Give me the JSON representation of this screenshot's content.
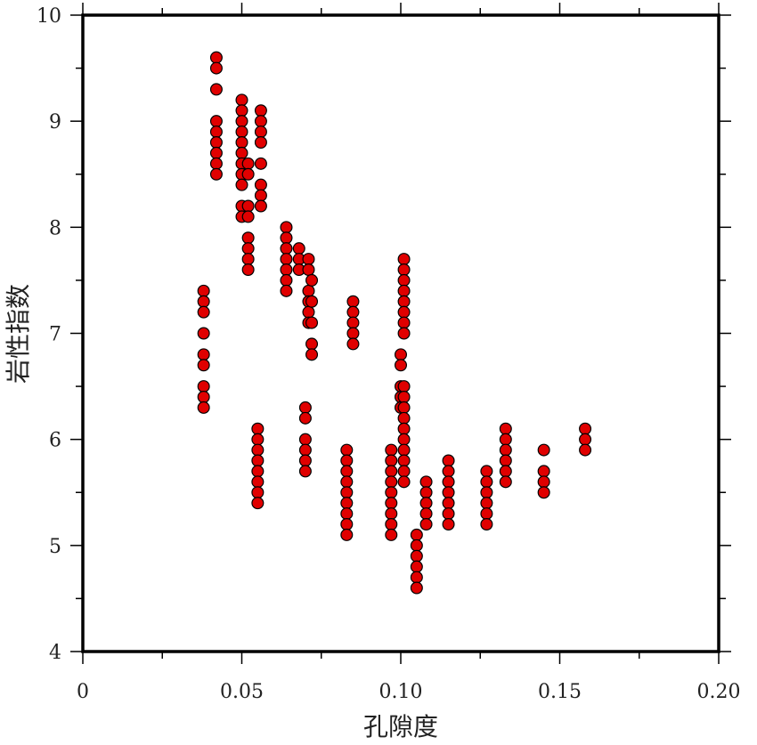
{
  "chart_data": {
    "type": "scatter",
    "title": "",
    "xlabel": "孔隙度",
    "ylabel": "岩性指数",
    "xlim": [
      0,
      0.2
    ],
    "ylim": [
      4,
      10
    ],
    "x_ticks": [
      "0",
      "0.05",
      "0.10",
      "0.15",
      "0.20"
    ],
    "x_tick_values": [
      0,
      0.05,
      0.1,
      0.15,
      0.2
    ],
    "y_ticks": [
      "4",
      "5",
      "6",
      "7",
      "8",
      "9",
      "10"
    ],
    "y_tick_values": [
      4,
      5,
      6,
      7,
      8,
      9,
      10
    ],
    "grid": false,
    "legend": "none",
    "point_color": "#e00000",
    "points": [
      {
        "x": 0.038,
        "y": 7.4
      },
      {
        "x": 0.038,
        "y": 7.3
      },
      {
        "x": 0.038,
        "y": 7.2
      },
      {
        "x": 0.038,
        "y": 7.0
      },
      {
        "x": 0.038,
        "y": 6.8
      },
      {
        "x": 0.038,
        "y": 6.7
      },
      {
        "x": 0.038,
        "y": 6.5
      },
      {
        "x": 0.038,
        "y": 6.4
      },
      {
        "x": 0.038,
        "y": 6.3
      },
      {
        "x": 0.042,
        "y": 9.6
      },
      {
        "x": 0.042,
        "y": 9.5
      },
      {
        "x": 0.042,
        "y": 9.3
      },
      {
        "x": 0.042,
        "y": 9.0
      },
      {
        "x": 0.042,
        "y": 8.9
      },
      {
        "x": 0.042,
        "y": 8.8
      },
      {
        "x": 0.042,
        "y": 8.7
      },
      {
        "x": 0.042,
        "y": 8.6
      },
      {
        "x": 0.042,
        "y": 8.5
      },
      {
        "x": 0.05,
        "y": 9.2
      },
      {
        "x": 0.05,
        "y": 9.1
      },
      {
        "x": 0.05,
        "y": 9.0
      },
      {
        "x": 0.05,
        "y": 8.9
      },
      {
        "x": 0.05,
        "y": 8.8
      },
      {
        "x": 0.05,
        "y": 8.7
      },
      {
        "x": 0.05,
        "y": 8.6
      },
      {
        "x": 0.05,
        "y": 8.5
      },
      {
        "x": 0.05,
        "y": 8.4
      },
      {
        "x": 0.05,
        "y": 8.2
      },
      {
        "x": 0.05,
        "y": 8.1
      },
      {
        "x": 0.052,
        "y": 8.6
      },
      {
        "x": 0.052,
        "y": 8.5
      },
      {
        "x": 0.052,
        "y": 8.2
      },
      {
        "x": 0.052,
        "y": 8.1
      },
      {
        "x": 0.052,
        "y": 7.9
      },
      {
        "x": 0.052,
        "y": 7.8
      },
      {
        "x": 0.052,
        "y": 7.7
      },
      {
        "x": 0.052,
        "y": 7.6
      },
      {
        "x": 0.056,
        "y": 9.1
      },
      {
        "x": 0.056,
        "y": 9.0
      },
      {
        "x": 0.056,
        "y": 8.9
      },
      {
        "x": 0.056,
        "y": 8.8
      },
      {
        "x": 0.056,
        "y": 8.6
      },
      {
        "x": 0.056,
        "y": 8.4
      },
      {
        "x": 0.056,
        "y": 8.3
      },
      {
        "x": 0.056,
        "y": 8.2
      },
      {
        "x": 0.055,
        "y": 6.1
      },
      {
        "x": 0.055,
        "y": 6.0
      },
      {
        "x": 0.055,
        "y": 5.9
      },
      {
        "x": 0.055,
        "y": 5.8
      },
      {
        "x": 0.055,
        "y": 5.7
      },
      {
        "x": 0.055,
        "y": 5.6
      },
      {
        "x": 0.055,
        "y": 5.5
      },
      {
        "x": 0.055,
        "y": 5.4
      },
      {
        "x": 0.064,
        "y": 8.0
      },
      {
        "x": 0.064,
        "y": 7.9
      },
      {
        "x": 0.064,
        "y": 7.8
      },
      {
        "x": 0.064,
        "y": 7.7
      },
      {
        "x": 0.064,
        "y": 7.6
      },
      {
        "x": 0.064,
        "y": 7.5
      },
      {
        "x": 0.064,
        "y": 7.4
      },
      {
        "x": 0.068,
        "y": 7.8
      },
      {
        "x": 0.068,
        "y": 7.7
      },
      {
        "x": 0.068,
        "y": 7.6
      },
      {
        "x": 0.071,
        "y": 7.7
      },
      {
        "x": 0.071,
        "y": 7.6
      },
      {
        "x": 0.071,
        "y": 7.4
      },
      {
        "x": 0.071,
        "y": 7.3
      },
      {
        "x": 0.071,
        "y": 7.2
      },
      {
        "x": 0.071,
        "y": 7.1
      },
      {
        "x": 0.072,
        "y": 7.5
      },
      {
        "x": 0.072,
        "y": 7.3
      },
      {
        "x": 0.072,
        "y": 7.1
      },
      {
        "x": 0.072,
        "y": 6.9
      },
      {
        "x": 0.072,
        "y": 6.8
      },
      {
        "x": 0.07,
        "y": 6.3
      },
      {
        "x": 0.07,
        "y": 6.2
      },
      {
        "x": 0.07,
        "y": 6.0
      },
      {
        "x": 0.07,
        "y": 5.9
      },
      {
        "x": 0.07,
        "y": 5.8
      },
      {
        "x": 0.07,
        "y": 5.7
      },
      {
        "x": 0.083,
        "y": 5.9
      },
      {
        "x": 0.083,
        "y": 5.8
      },
      {
        "x": 0.083,
        "y": 5.7
      },
      {
        "x": 0.083,
        "y": 5.6
      },
      {
        "x": 0.083,
        "y": 5.5
      },
      {
        "x": 0.083,
        "y": 5.4
      },
      {
        "x": 0.083,
        "y": 5.3
      },
      {
        "x": 0.083,
        "y": 5.2
      },
      {
        "x": 0.083,
        "y": 5.1
      },
      {
        "x": 0.085,
        "y": 7.3
      },
      {
        "x": 0.085,
        "y": 7.2
      },
      {
        "x": 0.085,
        "y": 7.1
      },
      {
        "x": 0.085,
        "y": 7.0
      },
      {
        "x": 0.085,
        "y": 6.9
      },
      {
        "x": 0.097,
        "y": 5.9
      },
      {
        "x": 0.097,
        "y": 5.8
      },
      {
        "x": 0.097,
        "y": 5.7
      },
      {
        "x": 0.097,
        "y": 5.6
      },
      {
        "x": 0.097,
        "y": 5.5
      },
      {
        "x": 0.097,
        "y": 5.4
      },
      {
        "x": 0.097,
        "y": 5.3
      },
      {
        "x": 0.097,
        "y": 5.2
      },
      {
        "x": 0.097,
        "y": 5.1
      },
      {
        "x": 0.1,
        "y": 6.8
      },
      {
        "x": 0.1,
        "y": 6.7
      },
      {
        "x": 0.1,
        "y": 6.5
      },
      {
        "x": 0.1,
        "y": 6.4
      },
      {
        "x": 0.1,
        "y": 6.3
      },
      {
        "x": 0.101,
        "y": 7.7
      },
      {
        "x": 0.101,
        "y": 7.6
      },
      {
        "x": 0.101,
        "y": 7.5
      },
      {
        "x": 0.101,
        "y": 7.4
      },
      {
        "x": 0.101,
        "y": 7.3
      },
      {
        "x": 0.101,
        "y": 7.2
      },
      {
        "x": 0.101,
        "y": 7.1
      },
      {
        "x": 0.101,
        "y": 7.0
      },
      {
        "x": 0.101,
        "y": 6.5
      },
      {
        "x": 0.101,
        "y": 6.4
      },
      {
        "x": 0.101,
        "y": 6.3
      },
      {
        "x": 0.101,
        "y": 6.2
      },
      {
        "x": 0.101,
        "y": 6.1
      },
      {
        "x": 0.101,
        "y": 6.0
      },
      {
        "x": 0.101,
        "y": 5.9
      },
      {
        "x": 0.101,
        "y": 5.8
      },
      {
        "x": 0.101,
        "y": 5.7
      },
      {
        "x": 0.101,
        "y": 5.6
      },
      {
        "x": 0.105,
        "y": 5.1
      },
      {
        "x": 0.105,
        "y": 5.0
      },
      {
        "x": 0.105,
        "y": 4.9
      },
      {
        "x": 0.105,
        "y": 4.8
      },
      {
        "x": 0.105,
        "y": 4.7
      },
      {
        "x": 0.105,
        "y": 4.6
      },
      {
        "x": 0.108,
        "y": 5.6
      },
      {
        "x": 0.108,
        "y": 5.5
      },
      {
        "x": 0.108,
        "y": 5.4
      },
      {
        "x": 0.108,
        "y": 5.3
      },
      {
        "x": 0.108,
        "y": 5.2
      },
      {
        "x": 0.115,
        "y": 5.8
      },
      {
        "x": 0.115,
        "y": 5.7
      },
      {
        "x": 0.115,
        "y": 5.6
      },
      {
        "x": 0.115,
        "y": 5.5
      },
      {
        "x": 0.115,
        "y": 5.4
      },
      {
        "x": 0.115,
        "y": 5.3
      },
      {
        "x": 0.115,
        "y": 5.2
      },
      {
        "x": 0.127,
        "y": 5.7
      },
      {
        "x": 0.127,
        "y": 5.6
      },
      {
        "x": 0.127,
        "y": 5.5
      },
      {
        "x": 0.127,
        "y": 5.4
      },
      {
        "x": 0.127,
        "y": 5.3
      },
      {
        "x": 0.127,
        "y": 5.2
      },
      {
        "x": 0.133,
        "y": 6.1
      },
      {
        "x": 0.133,
        "y": 6.0
      },
      {
        "x": 0.133,
        "y": 5.9
      },
      {
        "x": 0.133,
        "y": 5.8
      },
      {
        "x": 0.133,
        "y": 5.7
      },
      {
        "x": 0.133,
        "y": 5.6
      },
      {
        "x": 0.145,
        "y": 5.9
      },
      {
        "x": 0.145,
        "y": 5.7
      },
      {
        "x": 0.145,
        "y": 5.6
      },
      {
        "x": 0.145,
        "y": 5.5
      },
      {
        "x": 0.158,
        "y": 6.1
      },
      {
        "x": 0.158,
        "y": 6.0
      },
      {
        "x": 0.158,
        "y": 5.9
      }
    ]
  }
}
